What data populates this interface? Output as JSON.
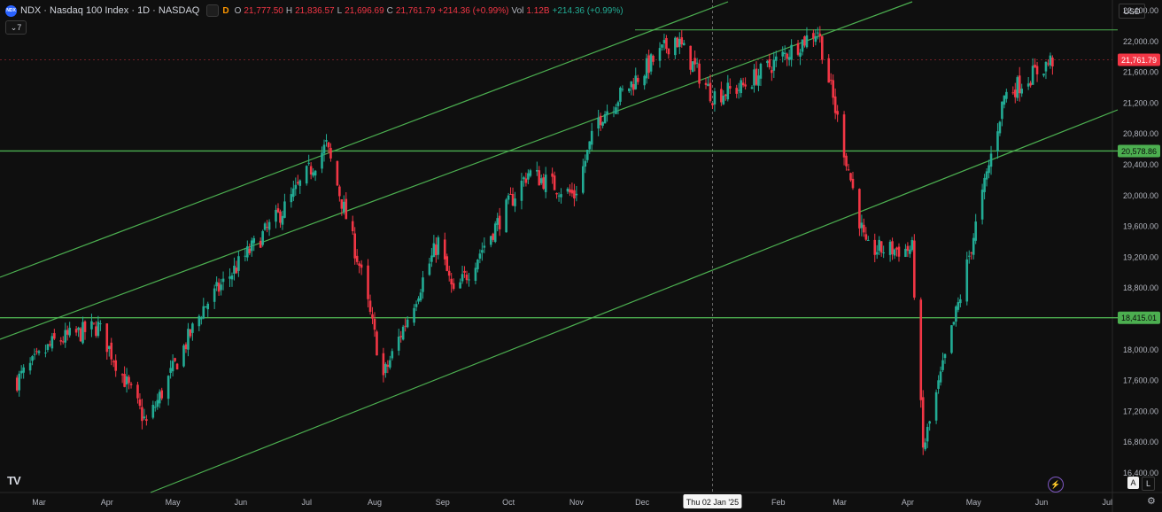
{
  "header": {
    "logo_text": "NDX",
    "title": "NDX · Nasdaq 100 Index · 1D · NASDAQ",
    "alert_badge": "",
    "d_badge": "D",
    "ohlc": {
      "o_label": "O",
      "o_value": "21,777.50",
      "h_label": "H",
      "h_value": "21,836.57",
      "l_label": "L",
      "l_value": "21,696.69",
      "c_label": "C",
      "c_value": "21,761.79",
      "change": "+214.36 (+0.99%)",
      "vol_label": "Vol",
      "vol_value": "1.12B",
      "vol_change": "+214.36 (+0.99%)"
    },
    "indicator_toggle": "7",
    "currency": "USD"
  },
  "axis": {
    "y_ticks": [
      "22,400.00",
      "22,000.00",
      "21,600.00",
      "21,200.00",
      "20,800.00",
      "20,400.00",
      "20,000.00",
      "19,600.00",
      "19,200.00",
      "18,800.00",
      "18,400.00",
      "18,000.00",
      "17,600.00",
      "17,200.00",
      "16,800.00",
      "16,400.00"
    ],
    "x_ticks": [
      "Mar",
      "Apr",
      "May",
      "Jun",
      "Jul",
      "Aug",
      "Sep",
      "Oct",
      "Nov",
      "Dec",
      "Feb",
      "Mar",
      "Apr",
      "May",
      "Jun",
      "Jul"
    ],
    "crosshair_date": "Thu 02 Jan '25",
    "price_tags": [
      {
        "label": "21,761.79",
        "price": 21761.79,
        "color": "#f23645"
      },
      {
        "label": "20,578.86",
        "price": 20578.86,
        "color": "#4caf50"
      },
      {
        "label": "18,415.01",
        "price": 18415.01,
        "color": "#4caf50"
      }
    ]
  },
  "colors": {
    "up": "#22ab94",
    "down": "#f23645",
    "drawings": "#4caf50",
    "background": "#0f0f0f"
  },
  "footer": {
    "tv_logo": "TV",
    "auto_btn": "A",
    "log_btn": "L",
    "bolt_icon": "⚡",
    "gear_icon": "⚙"
  },
  "chart_data": {
    "type": "candlestick",
    "symbol": "NDX",
    "interval": "1D",
    "ylim": [
      16300,
      22600
    ],
    "y_scale": "linear",
    "grid": false,
    "horizontal_levels": [
      22150,
      20578.86,
      18415.01
    ],
    "close_path": [
      [
        "2024-02-20",
        17600
      ],
      [
        "2024-03-08",
        18100
      ],
      [
        "2024-03-28",
        18300
      ],
      [
        "2024-04-19",
        17040
      ],
      [
        "2024-05-15",
        18550
      ],
      [
        "2024-06-20",
        19800
      ],
      [
        "2024-07-10",
        20650
      ],
      [
        "2024-07-25",
        19100
      ],
      [
        "2024-08-05",
        17650
      ],
      [
        "2024-08-30",
        19400
      ],
      [
        "2024-09-06",
        18700
      ],
      [
        "2024-10-10",
        20300
      ],
      [
        "2024-10-31",
        20000
      ],
      [
        "2024-11-11",
        21000
      ],
      [
        "2024-12-16",
        22050
      ],
      [
        "2025-01-02",
        21300
      ],
      [
        "2025-01-15",
        21400
      ],
      [
        "2025-02-19",
        22150
      ],
      [
        "2025-03-03",
        20600
      ],
      [
        "2025-03-13",
        19300
      ],
      [
        "2025-04-03",
        19300
      ],
      [
        "2025-04-08",
        16700
      ],
      [
        "2025-04-25",
        18700
      ],
      [
        "2025-05-15",
        21300
      ],
      [
        "2025-06-06",
        21761.79
      ]
    ]
  }
}
